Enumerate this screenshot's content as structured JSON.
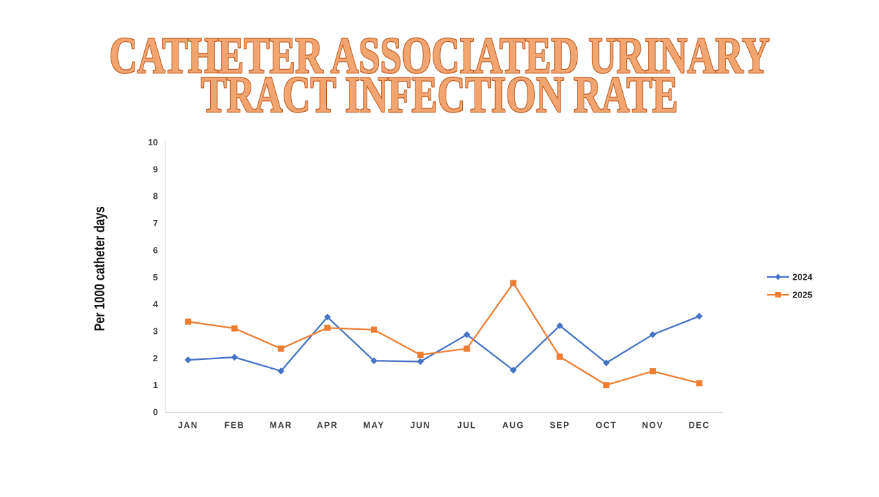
{
  "page": {
    "background_color": "#ffffff"
  },
  "title": {
    "line1": "CATHETER ASSOCIATED URINARY",
    "line2": "TRACT INFECTION RATE",
    "fill_color": "#F2A570",
    "outline_color": "#BF5A1E"
  },
  "chart_data": {
    "type": "line",
    "title": "CATHETER ASSOCIATED URINARY TRACT INFECTION RATE",
    "xlabel": "",
    "ylabel": "Per 1000 catheter days",
    "categories": [
      "JAN",
      "FEB",
      "MAR",
      "APR",
      "MAY",
      "JUN",
      "JUL",
      "AUG",
      "SEP",
      "OCT",
      "NOV",
      "DEC"
    ],
    "series": [
      {
        "name": "2024",
        "color": "#4472C4",
        "marker": "diamond",
        "values": [
          1.93,
          2.03,
          1.52,
          3.52,
          1.9,
          1.87,
          2.87,
          1.55,
          3.2,
          1.82,
          2.87,
          3.55
        ]
      },
      {
        "name": "2025",
        "color": "#ED7D31",
        "marker": "square",
        "values": [
          3.35,
          3.1,
          2.35,
          3.12,
          3.05,
          2.12,
          2.35,
          4.78,
          2.05,
          1.0,
          1.51,
          1.07
        ]
      }
    ],
    "ylim": [
      0,
      10
    ],
    "ytick_step": 1,
    "grid": false,
    "legend_position": "right",
    "axis_color": "#D9D9D9",
    "tick_label_color": "#3b3b3b"
  }
}
